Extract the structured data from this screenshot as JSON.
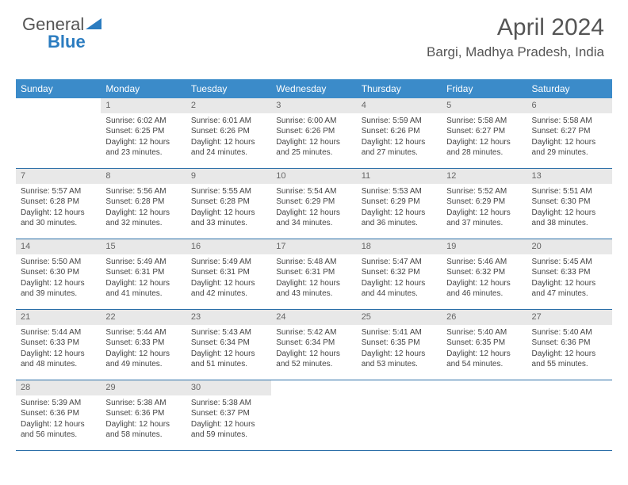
{
  "logo": {
    "word1": "General",
    "word2": "Blue"
  },
  "header": {
    "title": "April 2024",
    "location": "Bargi, Madhya Pradesh, India"
  },
  "colors": {
    "header_bg": "#3b8bc9",
    "header_text": "#ffffff",
    "daynum_bg": "#e8e8e8",
    "border": "#2b6fa8",
    "logo_blue": "#2b7cc0"
  },
  "weekdays": [
    "Sunday",
    "Monday",
    "Tuesday",
    "Wednesday",
    "Thursday",
    "Friday",
    "Saturday"
  ],
  "weeks": [
    [
      {
        "empty": true
      },
      {
        "n": "1",
        "sr": "Sunrise: 6:02 AM",
        "ss": "Sunset: 6:25 PM",
        "d1": "Daylight: 12 hours",
        "d2": "and 23 minutes."
      },
      {
        "n": "2",
        "sr": "Sunrise: 6:01 AM",
        "ss": "Sunset: 6:26 PM",
        "d1": "Daylight: 12 hours",
        "d2": "and 24 minutes."
      },
      {
        "n": "3",
        "sr": "Sunrise: 6:00 AM",
        "ss": "Sunset: 6:26 PM",
        "d1": "Daylight: 12 hours",
        "d2": "and 25 minutes."
      },
      {
        "n": "4",
        "sr": "Sunrise: 5:59 AM",
        "ss": "Sunset: 6:26 PM",
        "d1": "Daylight: 12 hours",
        "d2": "and 27 minutes."
      },
      {
        "n": "5",
        "sr": "Sunrise: 5:58 AM",
        "ss": "Sunset: 6:27 PM",
        "d1": "Daylight: 12 hours",
        "d2": "and 28 minutes."
      },
      {
        "n": "6",
        "sr": "Sunrise: 5:58 AM",
        "ss": "Sunset: 6:27 PM",
        "d1": "Daylight: 12 hours",
        "d2": "and 29 minutes."
      }
    ],
    [
      {
        "n": "7",
        "sr": "Sunrise: 5:57 AM",
        "ss": "Sunset: 6:28 PM",
        "d1": "Daylight: 12 hours",
        "d2": "and 30 minutes."
      },
      {
        "n": "8",
        "sr": "Sunrise: 5:56 AM",
        "ss": "Sunset: 6:28 PM",
        "d1": "Daylight: 12 hours",
        "d2": "and 32 minutes."
      },
      {
        "n": "9",
        "sr": "Sunrise: 5:55 AM",
        "ss": "Sunset: 6:28 PM",
        "d1": "Daylight: 12 hours",
        "d2": "and 33 minutes."
      },
      {
        "n": "10",
        "sr": "Sunrise: 5:54 AM",
        "ss": "Sunset: 6:29 PM",
        "d1": "Daylight: 12 hours",
        "d2": "and 34 minutes."
      },
      {
        "n": "11",
        "sr": "Sunrise: 5:53 AM",
        "ss": "Sunset: 6:29 PM",
        "d1": "Daylight: 12 hours",
        "d2": "and 36 minutes."
      },
      {
        "n": "12",
        "sr": "Sunrise: 5:52 AM",
        "ss": "Sunset: 6:29 PM",
        "d1": "Daylight: 12 hours",
        "d2": "and 37 minutes."
      },
      {
        "n": "13",
        "sr": "Sunrise: 5:51 AM",
        "ss": "Sunset: 6:30 PM",
        "d1": "Daylight: 12 hours",
        "d2": "and 38 minutes."
      }
    ],
    [
      {
        "n": "14",
        "sr": "Sunrise: 5:50 AM",
        "ss": "Sunset: 6:30 PM",
        "d1": "Daylight: 12 hours",
        "d2": "and 39 minutes."
      },
      {
        "n": "15",
        "sr": "Sunrise: 5:49 AM",
        "ss": "Sunset: 6:31 PM",
        "d1": "Daylight: 12 hours",
        "d2": "and 41 minutes."
      },
      {
        "n": "16",
        "sr": "Sunrise: 5:49 AM",
        "ss": "Sunset: 6:31 PM",
        "d1": "Daylight: 12 hours",
        "d2": "and 42 minutes."
      },
      {
        "n": "17",
        "sr": "Sunrise: 5:48 AM",
        "ss": "Sunset: 6:31 PM",
        "d1": "Daylight: 12 hours",
        "d2": "and 43 minutes."
      },
      {
        "n": "18",
        "sr": "Sunrise: 5:47 AM",
        "ss": "Sunset: 6:32 PM",
        "d1": "Daylight: 12 hours",
        "d2": "and 44 minutes."
      },
      {
        "n": "19",
        "sr": "Sunrise: 5:46 AM",
        "ss": "Sunset: 6:32 PM",
        "d1": "Daylight: 12 hours",
        "d2": "and 46 minutes."
      },
      {
        "n": "20",
        "sr": "Sunrise: 5:45 AM",
        "ss": "Sunset: 6:33 PM",
        "d1": "Daylight: 12 hours",
        "d2": "and 47 minutes."
      }
    ],
    [
      {
        "n": "21",
        "sr": "Sunrise: 5:44 AM",
        "ss": "Sunset: 6:33 PM",
        "d1": "Daylight: 12 hours",
        "d2": "and 48 minutes."
      },
      {
        "n": "22",
        "sr": "Sunrise: 5:44 AM",
        "ss": "Sunset: 6:33 PM",
        "d1": "Daylight: 12 hours",
        "d2": "and 49 minutes."
      },
      {
        "n": "23",
        "sr": "Sunrise: 5:43 AM",
        "ss": "Sunset: 6:34 PM",
        "d1": "Daylight: 12 hours",
        "d2": "and 51 minutes."
      },
      {
        "n": "24",
        "sr": "Sunrise: 5:42 AM",
        "ss": "Sunset: 6:34 PM",
        "d1": "Daylight: 12 hours",
        "d2": "and 52 minutes."
      },
      {
        "n": "25",
        "sr": "Sunrise: 5:41 AM",
        "ss": "Sunset: 6:35 PM",
        "d1": "Daylight: 12 hours",
        "d2": "and 53 minutes."
      },
      {
        "n": "26",
        "sr": "Sunrise: 5:40 AM",
        "ss": "Sunset: 6:35 PM",
        "d1": "Daylight: 12 hours",
        "d2": "and 54 minutes."
      },
      {
        "n": "27",
        "sr": "Sunrise: 5:40 AM",
        "ss": "Sunset: 6:36 PM",
        "d1": "Daylight: 12 hours",
        "d2": "and 55 minutes."
      }
    ],
    [
      {
        "n": "28",
        "sr": "Sunrise: 5:39 AM",
        "ss": "Sunset: 6:36 PM",
        "d1": "Daylight: 12 hours",
        "d2": "and 56 minutes."
      },
      {
        "n": "29",
        "sr": "Sunrise: 5:38 AM",
        "ss": "Sunset: 6:36 PM",
        "d1": "Daylight: 12 hours",
        "d2": "and 58 minutes."
      },
      {
        "n": "30",
        "sr": "Sunrise: 5:38 AM",
        "ss": "Sunset: 6:37 PM",
        "d1": "Daylight: 12 hours",
        "d2": "and 59 minutes."
      },
      {
        "empty": true
      },
      {
        "empty": true
      },
      {
        "empty": true
      },
      {
        "empty": true
      }
    ]
  ]
}
